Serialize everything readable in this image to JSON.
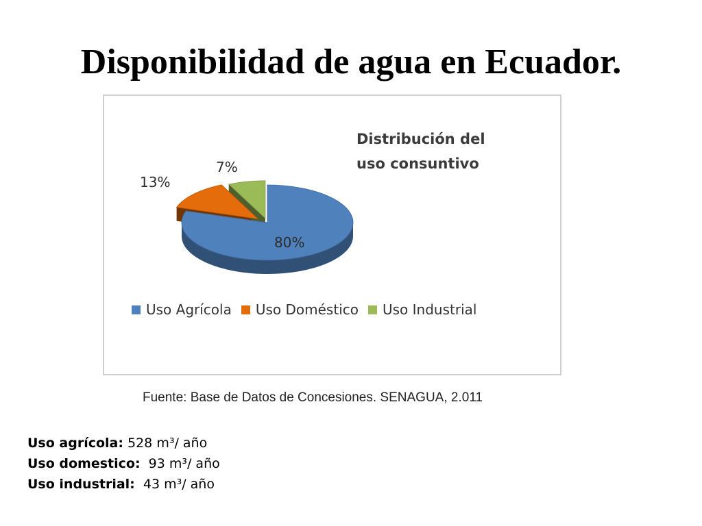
{
  "slide": {
    "title": "Disponibilidad de agua en Ecuador.",
    "source": "Fuente: Base de Datos de Concesiones. SENAGUA, 2.011"
  },
  "chart_data": {
    "type": "pie",
    "style": "3d-exploded",
    "title_lines": [
      "Distribución del",
      "uso consuntivo"
    ],
    "categories": [
      "Uso Agrícola",
      "Uso Doméstico",
      "Uso Industrial"
    ],
    "values": [
      80,
      13,
      7
    ],
    "value_labels": [
      "80%",
      "13%",
      "7%"
    ],
    "colors": [
      "#4f81bd",
      "#e46c0a",
      "#9bbb59"
    ],
    "legend_position": "bottom"
  },
  "usage": [
    {
      "label": "Uso agrícola:",
      "value": " 528 m³/ año"
    },
    {
      "label": "Uso domestico:",
      "value": "  93 m³/ año"
    },
    {
      "label": "Uso industrial:",
      "value": "  43 m³/ año"
    }
  ]
}
